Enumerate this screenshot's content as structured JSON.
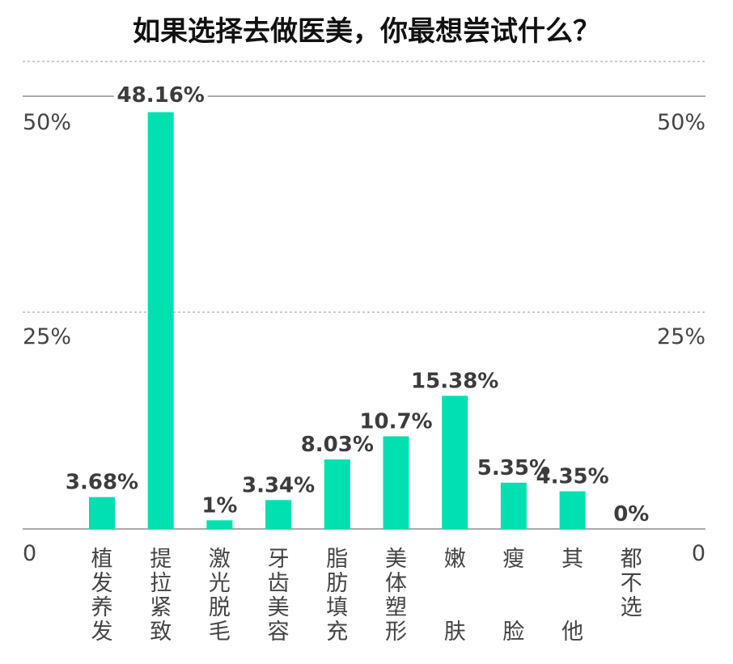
{
  "colors": {
    "bar": "#00e0b0",
    "gridline": "#999999",
    "text": "#444444",
    "title": "#111111"
  },
  "chart_data": {
    "type": "bar",
    "title": "如果选择去做医美，你最想尝试什么？",
    "categories": [
      "植发养发",
      "提拉紧致",
      "激光脱毛",
      "牙齿美容",
      "脂肪填充",
      "美体塑形",
      "嫩肤",
      "瘦脸",
      "其他",
      "都不选"
    ],
    "values": [
      3.68,
      48.16,
      1,
      3.34,
      8.03,
      10.7,
      15.38,
      5.35,
      4.35,
      0
    ],
    "value_labels": [
      "3.68%",
      "48.16%",
      "1%",
      "3.34%",
      "8.03%",
      "10.7%",
      "15.38%",
      "5.35%",
      "4.35%",
      "0%"
    ],
    "ylim": [
      0,
      50
    ],
    "y_ticks_left": [
      "0",
      "25%",
      "50%"
    ],
    "y_ticks_right": [
      "0",
      "25%",
      "50%"
    ],
    "grid": true,
    "legend": "none"
  }
}
